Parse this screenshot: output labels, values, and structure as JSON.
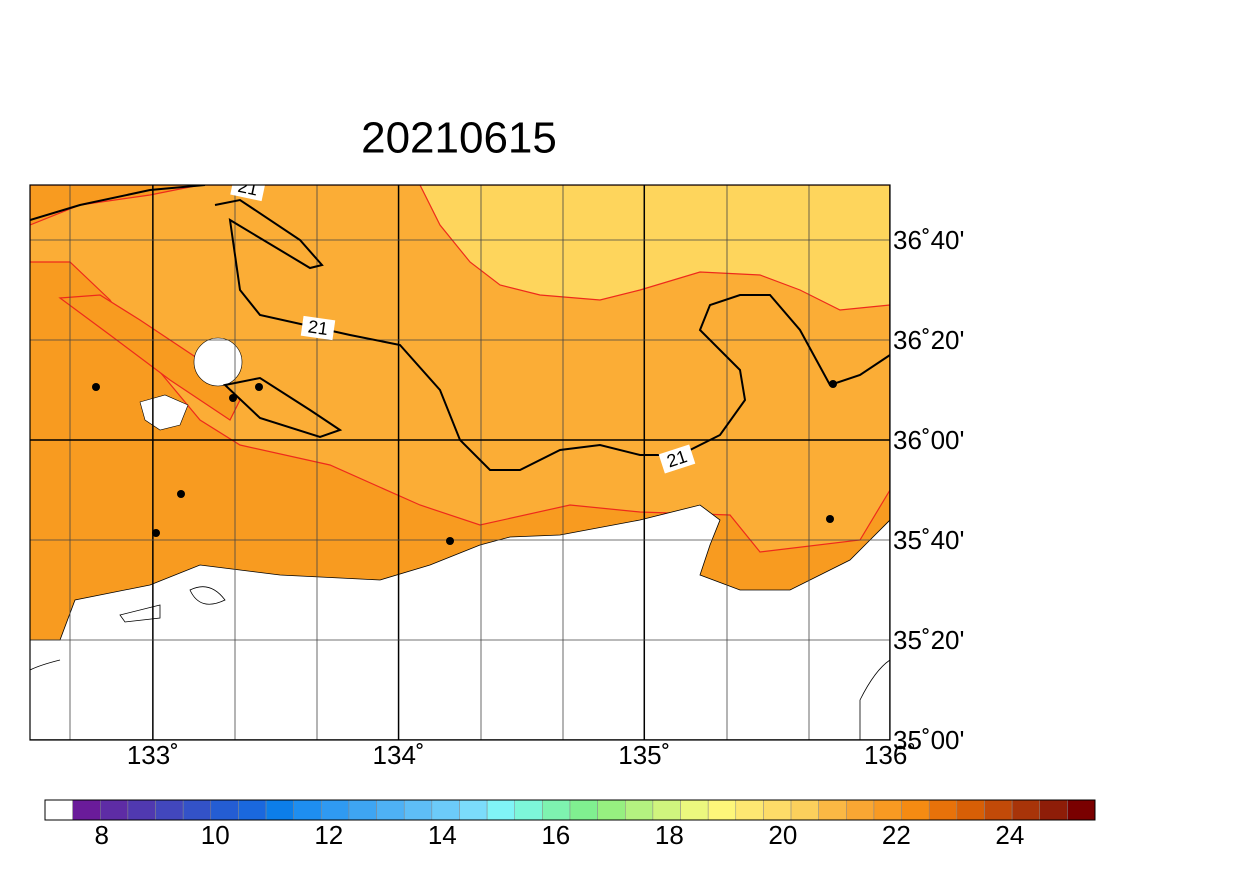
{
  "title": "20210615",
  "map": {
    "lonlim": [
      132.5,
      136
    ],
    "latlim": [
      35,
      36.85
    ],
    "lon_ticks": [
      {
        "value": 133,
        "label": "133˚"
      },
      {
        "value": 134,
        "label": "134˚"
      },
      {
        "value": 135,
        "label": "135˚"
      },
      {
        "value": 136,
        "label": "136˚"
      }
    ],
    "lat_ticks": [
      {
        "value": 35,
        "label": "35˚00'"
      },
      {
        "value": 35.333333,
        "label": "35˚20'"
      },
      {
        "value": 35.666667,
        "label": "35˚40'"
      },
      {
        "value": 36,
        "label": "36˚00'"
      },
      {
        "value": 36.333333,
        "label": "36˚20'"
      },
      {
        "value": 36.666667,
        "label": "36˚40'"
      }
    ],
    "contour_labels": [
      "21",
      "21",
      "21"
    ]
  },
  "colorbar": {
    "range": [
      7,
      25.5
    ],
    "ticks": [
      8,
      10,
      12,
      14,
      16,
      18,
      20,
      22,
      24
    ],
    "colors": [
      "#ffffff",
      "#6a1b9a",
      "#5e2ca5",
      "#5039b0",
      "#4247bd",
      "#3352c8",
      "#245dd3",
      "#1a68de",
      "#0c7ee9",
      "#1e8ef0",
      "#2f9af2",
      "#3ea5f3",
      "#4eb1f5",
      "#5ebef7",
      "#6ccbf9",
      "#7bdcfb",
      "#80f4f6",
      "#7df7d9",
      "#7ef3b0",
      "#80f090",
      "#96f080",
      "#b4f280",
      "#d0f57e",
      "#ecf87e",
      "#fdf77a",
      "#fde872",
      "#fddc68",
      "#fcd05c",
      "#fbb844",
      "#f9a733",
      "#f89a22",
      "#f58b12",
      "#e8720a",
      "#d85f06",
      "#c24a08",
      "#a83409",
      "#8e1d08",
      "#7a0000"
    ]
  }
}
